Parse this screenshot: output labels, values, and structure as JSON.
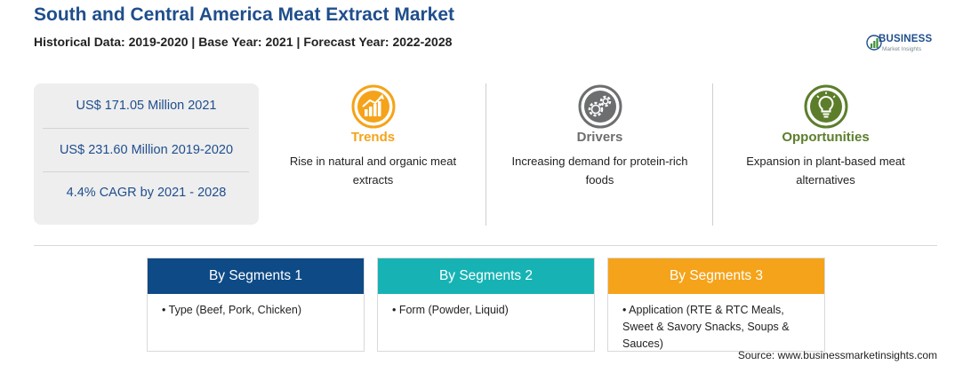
{
  "header": {
    "title": "South and Central America Meat Extract Market",
    "subtitle": "Historical Data: 2019-2020 | Base Year: 2021 | Forecast Year: 2022-2028"
  },
  "logo": {
    "name": "BUSINESS",
    "tagline": "Market Insights"
  },
  "stats": [
    "US$ 171.05 Million 2021",
    "US$ 231.60 Million 2019-2020",
    "4.4% CAGR by 2021 - 2028"
  ],
  "columns": [
    {
      "title": "Trends",
      "text": "Rise in natural and organic meat extracts",
      "color": "#f5a31a",
      "icon": "trend-chart-icon"
    },
    {
      "title": "Drivers",
      "text": "Increasing demand for protein-rich foods",
      "color": "#6d6e70",
      "icon": "gears-icon"
    },
    {
      "title": "Opportunities",
      "text": "Expansion in plant-based meat alternatives",
      "color": "#5c7e2b",
      "icon": "lightbulb-icon"
    }
  ],
  "segments": [
    {
      "title": "By Segments 1",
      "item": "• Type (Beef, Pork, Chicken)",
      "color": "#0e4a86"
    },
    {
      "title": "By Segments 2",
      "item": "• Form (Powder, Liquid)",
      "color": "#17b3b4"
    },
    {
      "title": "By Segments 3",
      "item": "• Application (RTE & RTC Meals, Sweet & Savory Snacks, Soups & Sauces)",
      "color": "#f5a31a"
    }
  ],
  "source": "Source: www.businessmarketinsights.com"
}
